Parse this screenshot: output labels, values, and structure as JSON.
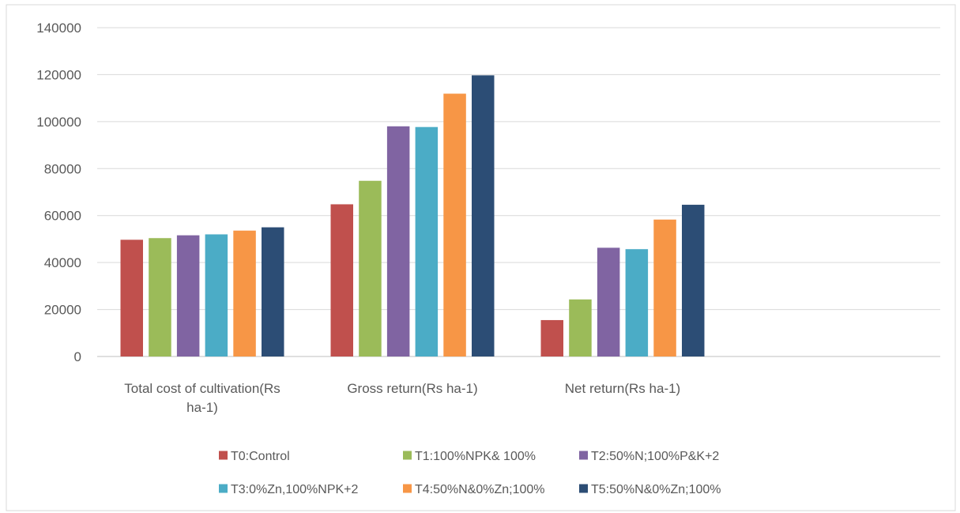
{
  "chart_data": {
    "type": "bar",
    "title": "",
    "xlabel": "",
    "ylabel": "",
    "ylim": [
      0,
      140000
    ],
    "yticks": [
      0,
      20000,
      40000,
      60000,
      80000,
      100000,
      120000,
      140000
    ],
    "grid": true,
    "legend_position": "bottom",
    "categories": [
      [
        "Total cost of cultivation(Rs",
        "ha-1)"
      ],
      [
        "Gross return(Rs ha-1)"
      ],
      [
        "Net return(Rs ha-1)"
      ]
    ],
    "series": [
      {
        "name": "T0:Control",
        "color": "#C0504D",
        "values": [
          49700,
          64800,
          15500
        ]
      },
      {
        "name": "T1:100%NPK& 100%",
        "color": "#9BBB59",
        "values": [
          50400,
          74800,
          24300
        ]
      },
      {
        "name": "T2:50%N;100%P&K+2",
        "color": "#8064A2",
        "values": [
          51600,
          98000,
          46300
        ]
      },
      {
        "name": "T3:0%Zn,100%NPK+2",
        "color": "#4BACC6",
        "values": [
          52000,
          97700,
          45700
        ]
      },
      {
        "name": "T4:50%N&0%Zn;100%",
        "color": "#F79646",
        "values": [
          53600,
          111900,
          58300
        ]
      },
      {
        "name": "T5:50%N&0%Zn;100%",
        "color": "#2C4D75",
        "values": [
          55000,
          119700,
          64600
        ]
      }
    ]
  }
}
